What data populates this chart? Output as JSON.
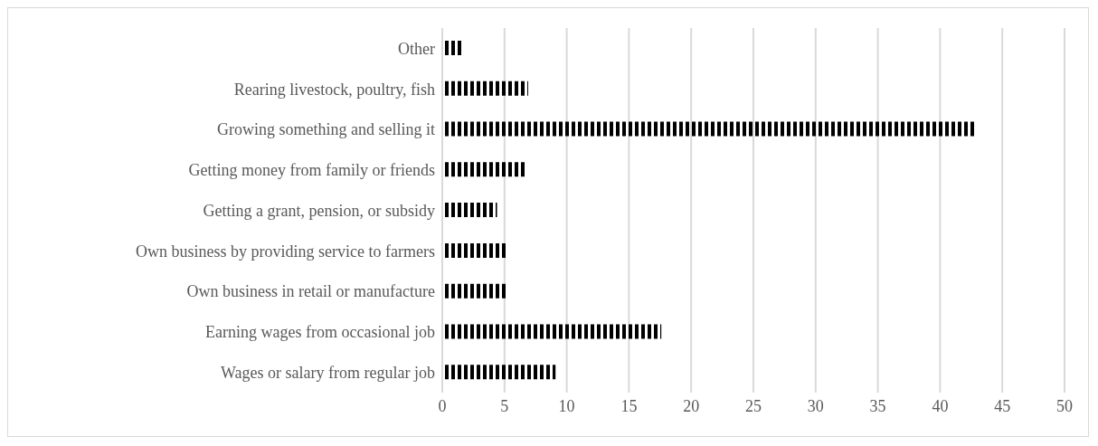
{
  "chart_data": {
    "type": "bar",
    "orientation": "horizontal",
    "categories": [
      "Other",
      "Rearing livestock, poultry, fish",
      "Growing something and selling it",
      "Getting money from family or friends",
      "Getting a grant, pension, or subsidy",
      "Own business by providing service to farmers",
      "Own business in retail or manufacture",
      "Earning wages from occasional job",
      "Wages or salary from regular job"
    ],
    "values": [
      1.7,
      6.9,
      42.9,
      6.7,
      4.4,
      5.2,
      5.2,
      17.6,
      9.1
    ],
    "color": "#000000",
    "xlim": [
      0,
      50
    ],
    "xticks": [
      0,
      5,
      10,
      15,
      20,
      25,
      30,
      35,
      40,
      45,
      50
    ],
    "grid": "x"
  }
}
